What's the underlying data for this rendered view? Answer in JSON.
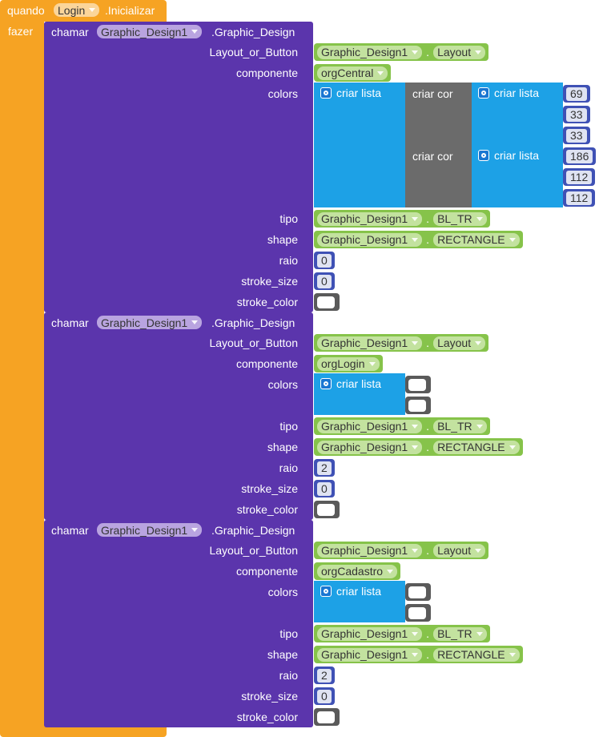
{
  "event": {
    "keyword": "quando",
    "component": "Login",
    "name": ".Inicializar",
    "do": "fazer"
  },
  "calls": [
    {
      "keyword": "chamar",
      "component": "Graphic_Design1",
      "method": ".Graphic_Design",
      "params": [
        {
          "label": "Layout_or_Button",
          "value": {
            "kind": "property",
            "component": "Graphic_Design1",
            "dot": ".",
            "property": "Layout"
          }
        },
        {
          "label": "componente",
          "value": {
            "kind": "component",
            "name": "orgCentral"
          }
        },
        {
          "label": "colors",
          "value": {
            "kind": "list",
            "label": "criar lista",
            "items": [
              {
                "kind": "make_color",
                "label": "criar cor",
                "list": {
                  "kind": "list",
                  "label": "criar lista",
                  "items": [
                    {
                      "kind": "number",
                      "value": 69
                    },
                    {
                      "kind": "number",
                      "value": 33
                    },
                    {
                      "kind": "number",
                      "value": 33
                    }
                  ]
                }
              },
              {
                "kind": "make_color",
                "label": "criar cor",
                "list": {
                  "kind": "list",
                  "label": "criar lista",
                  "items": [
                    {
                      "kind": "number",
                      "value": 186
                    },
                    {
                      "kind": "number",
                      "value": 112
                    },
                    {
                      "kind": "number",
                      "value": 112
                    }
                  ]
                }
              }
            ]
          }
        },
        {
          "label": "tipo",
          "value": {
            "kind": "property",
            "component": "Graphic_Design1",
            "dot": ".",
            "property": "BL_TR"
          }
        },
        {
          "label": "shape",
          "value": {
            "kind": "property",
            "component": "Graphic_Design1",
            "dot": ".",
            "property": "RECTANGLE"
          }
        },
        {
          "label": "raio",
          "value": {
            "kind": "number",
            "value": 0
          }
        },
        {
          "label": "stroke_size",
          "value": {
            "kind": "number",
            "value": 0
          }
        },
        {
          "label": "stroke_color",
          "value": {
            "kind": "color",
            "color": "#ffffff"
          }
        }
      ]
    },
    {
      "keyword": "chamar",
      "component": "Graphic_Design1",
      "method": ".Graphic_Design",
      "params": [
        {
          "label": "Layout_or_Button",
          "value": {
            "kind": "property",
            "component": "Graphic_Design1",
            "dot": ".",
            "property": "Layout"
          }
        },
        {
          "label": "componente",
          "value": {
            "kind": "component",
            "name": "orgLogin"
          }
        },
        {
          "label": "colors",
          "value": {
            "kind": "list",
            "label": "criar lista",
            "items": [
              {
                "kind": "color",
                "color": "#ffffff"
              },
              {
                "kind": "color",
                "color": "#ffffff"
              }
            ]
          }
        },
        {
          "label": "tipo",
          "value": {
            "kind": "property",
            "component": "Graphic_Design1",
            "dot": ".",
            "property": "BL_TR"
          }
        },
        {
          "label": "shape",
          "value": {
            "kind": "property",
            "component": "Graphic_Design1",
            "dot": ".",
            "property": "RECTANGLE"
          }
        },
        {
          "label": "raio",
          "value": {
            "kind": "number",
            "value": 2
          }
        },
        {
          "label": "stroke_size",
          "value": {
            "kind": "number",
            "value": 0
          }
        },
        {
          "label": "stroke_color",
          "value": {
            "kind": "color",
            "color": "#ffffff"
          }
        }
      ]
    },
    {
      "keyword": "chamar",
      "component": "Graphic_Design1",
      "method": ".Graphic_Design",
      "params": [
        {
          "label": "Layout_or_Button",
          "value": {
            "kind": "property",
            "component": "Graphic_Design1",
            "dot": ".",
            "property": "Layout"
          }
        },
        {
          "label": "componente",
          "value": {
            "kind": "component",
            "name": "orgCadastro"
          }
        },
        {
          "label": "colors",
          "value": {
            "kind": "list",
            "label": "criar lista",
            "items": [
              {
                "kind": "color",
                "color": "#ffffff"
              },
              {
                "kind": "color",
                "color": "#ffffff"
              }
            ]
          }
        },
        {
          "label": "tipo",
          "value": {
            "kind": "property",
            "component": "Graphic_Design1",
            "dot": ".",
            "property": "BL_TR"
          }
        },
        {
          "label": "shape",
          "value": {
            "kind": "property",
            "component": "Graphic_Design1",
            "dot": ".",
            "property": "RECTANGLE"
          }
        },
        {
          "label": "raio",
          "value": {
            "kind": "number",
            "value": 2
          }
        },
        {
          "label": "stroke_size",
          "value": {
            "kind": "number",
            "value": 0
          }
        },
        {
          "label": "stroke_color",
          "value": {
            "kind": "color",
            "color": "#ffffff"
          }
        }
      ]
    }
  ]
}
